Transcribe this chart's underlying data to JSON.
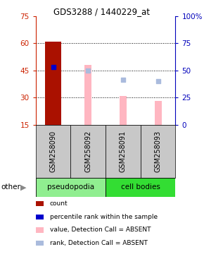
{
  "title": "GDS3288 / 1440229_at",
  "samples": [
    "GSM258090",
    "GSM258092",
    "GSM258091",
    "GSM258093"
  ],
  "ylim_left": [
    15,
    75
  ],
  "ylim_right": [
    0,
    100
  ],
  "yticks_left": [
    15,
    30,
    45,
    60,
    75
  ],
  "yticks_right": [
    0,
    25,
    50,
    75,
    100
  ],
  "yticklabels_right": [
    "0",
    "25",
    "50",
    "75",
    "100%"
  ],
  "left_axis_color": "#CC2200",
  "right_axis_color": "#0000BB",
  "count_values": [
    61,
    null,
    null,
    null
  ],
  "count_color": "#AA1100",
  "rank_values": [
    47,
    null,
    null,
    null
  ],
  "rank_color": "#0000CC",
  "absent_value_bars": [
    null,
    48,
    31,
    28
  ],
  "absent_value_color": "#FFB6C1",
  "absent_rank_dots": [
    null,
    45,
    40,
    39
  ],
  "absent_rank_color": "#AABBDD",
  "dotsize": 18,
  "bg_label": "#C8C8C8",
  "bg_group_pseudo": "#90EE90",
  "bg_group_cell": "#33DD33",
  "legend_items": [
    {
      "color": "#AA1100",
      "label": "count"
    },
    {
      "color": "#0000CC",
      "label": "percentile rank within the sample"
    },
    {
      "color": "#FFB6C1",
      "label": "value, Detection Call = ABSENT"
    },
    {
      "color": "#AABBDD",
      "label": "rank, Detection Call = ABSENT"
    }
  ],
  "other_label": "other"
}
